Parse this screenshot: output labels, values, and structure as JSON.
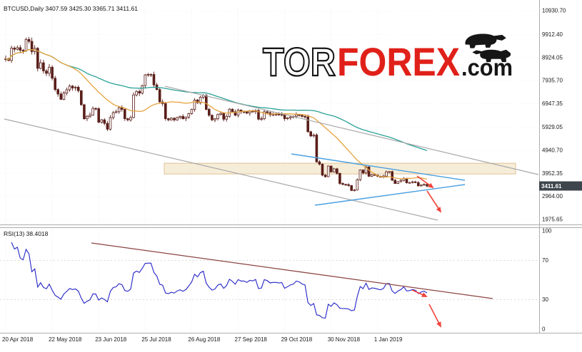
{
  "header": {
    "text": "BTCUSD,Daily 3407.59 3425.30 3365.71 3411.61"
  },
  "watermark": {
    "part1": "TOR",
    "part2": "FOREX",
    "part3": ".com"
  },
  "price_axis": {
    "current": "3411.61"
  },
  "rsi_panel": {
    "label": "RSI(13) 38.4018",
    "levels": [
      100,
      70,
      30,
      0
    ]
  },
  "colors": {
    "background": "#ffffff",
    "candle": "#5a1f1a",
    "ma_slow": "#2aa198",
    "ma_fast": "#e6a23c",
    "channel": "#a9a9a9",
    "wedge": "#4aa0e0",
    "arrow": "#f0443c",
    "rsi_line": "#2424c8",
    "rsi_trend": "#8b4540",
    "zone_fill": "#f5ead2",
    "zone_border": "#e0c293",
    "grid": "#ededed",
    "grid_h": "#f2f2f2",
    "separator": "#adadad",
    "badge_bg": "#3f454d",
    "badge_text": "#ffffff",
    "logo_red": "#e0211a",
    "logo_black": "#161616"
  },
  "chart_data": {
    "type": "candlestick",
    "title": "BTCUSD, Daily",
    "symbol": "BTCUSD",
    "timeframe": "Daily",
    "ohlc_display": {
      "open": 3407.59,
      "high": 3425.3,
      "low": 3365.71,
      "close": 3411.61
    },
    "x_axis": {
      "tick_labels": [
        "20 Apr 2018",
        "22 May 2018",
        "23 Jun 2018",
        "25 Jul 2018",
        "26 Aug 2018",
        "27 Sep 2018",
        "29 Oct 2018",
        "30 Nov 2018",
        "1 Jan 2019"
      ],
      "candles_per_tick": 16
    },
    "y_axis": {
      "tick_labels": [
        "10930.70",
        "9912.40",
        "8924.05",
        "7935.70",
        "6947.35",
        "5929.05",
        "4940.70",
        "3952.35",
        "2964.00",
        "1975.65"
      ],
      "current_price": 3411.61
    },
    "series": [
      {
        "name": "BTCUSD close (approx., 2-day resolution, 20 Apr 2018 - early Feb 2019)",
        "values": [
          8870,
          8800,
          9330,
          9280,
          9350,
          9240,
          9220,
          9700,
          9620,
          9180,
          9320,
          8460,
          8700,
          8350,
          8250,
          8510,
          8040,
          7550,
          7360,
          7130,
          7400,
          7540,
          7700,
          7620,
          7650,
          7500,
          6900,
          6300,
          6400,
          6460,
          6740,
          6730,
          6150,
          6250,
          6100,
          5850,
          6350,
          6560,
          6600,
          6770,
          6700,
          6300,
          6250,
          6350,
          7320,
          7470,
          7400,
          7720,
          8180,
          8200,
          8200,
          7750,
          7550,
          7020,
          6950,
          6300,
          6250,
          6320,
          6250,
          6350,
          6400,
          6300,
          6370,
          6520,
          6700,
          7100,
          6980,
          7220,
          7300,
          6700,
          6450,
          6250,
          6300,
          6480,
          6530,
          6280,
          6400,
          6710,
          6600,
          6450,
          6670,
          6600,
          6600,
          6540,
          6620,
          6600,
          6650,
          6280,
          6300,
          6600,
          6560,
          6470,
          6490,
          6490,
          6470,
          6480,
          6300,
          6340,
          6380,
          6400,
          6470,
          6450,
          6400,
          6380,
          5740,
          5560,
          5600,
          4450,
          4350,
          3880,
          3810,
          4270,
          4020,
          4150,
          3950,
          3520,
          3480,
          3470,
          3430,
          3220,
          3240,
          3680,
          4100,
          3970,
          4230,
          3830,
          3900,
          3880,
          3830,
          3790,
          3840,
          4020,
          4030,
          3660,
          3520,
          3600,
          3650,
          3740,
          3550,
          3560,
          3590,
          3560,
          3420,
          3460,
          3480,
          3410
        ]
      }
    ],
    "indicators": {
      "ma_slow": {
        "period": 70,
        "style": "teal line"
      },
      "ma_fast": {
        "period": 22,
        "style": "orange line"
      },
      "rsi": {
        "period": 13,
        "last_value": 38.4018,
        "range": [
          0,
          100
        ],
        "levels": [
          70,
          30
        ]
      }
    },
    "annotations": {
      "resistance_zone": {
        "x1": 230,
        "x2": 722,
        "price_top": 4390,
        "price_bottom": 3930
      },
      "channel_lines": [
        {
          "x1": 231,
          "y1": 121,
          "x2": 754,
          "y2": 245
        },
        {
          "x1": 6,
          "y1": 167,
          "x2": 613,
          "y2": 309
        }
      ],
      "wedge_lines": [
        {
          "x1": 408,
          "y1": 216,
          "x2": 651,
          "y2": 253
        },
        {
          "x1": 441,
          "y1": 288,
          "x2": 651,
          "y2": 259
        }
      ],
      "price_arrows": [
        {
          "x1": 584,
          "y1": 247,
          "x2": 606,
          "y2": 263
        },
        {
          "x1": 598,
          "y1": 268,
          "x2": 617,
          "y2": 297
        }
      ],
      "rsi_trendline": {
        "x1": 128,
        "y1": 341,
        "x2": 690,
        "y2": 419
      },
      "rsi_arrows": [
        {
          "x1": 577,
          "y1": 407,
          "x2": 597,
          "y2": 416
        },
        {
          "x1": 601,
          "y1": 427,
          "x2": 617,
          "y2": 458
        }
      ]
    }
  }
}
